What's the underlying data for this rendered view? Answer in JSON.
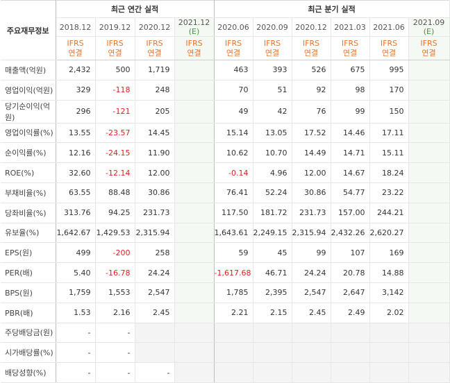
{
  "header": {
    "row_label": "주요재무정보",
    "annual_title": "최근 연간 실적",
    "quarter_title": "최근 분기 실적",
    "ifrs_top": "IFRS",
    "ifrs_bottom": "연결",
    "est_suffix": "(E)"
  },
  "annual_periods": [
    "2018.12",
    "2019.12",
    "2020.12",
    "2021.12"
  ],
  "quarter_periods": [
    "2020.06",
    "2020.09",
    "2020.12",
    "2021.03",
    "2021.06",
    "2021.09"
  ],
  "rows": [
    {
      "label": "매출액(억원)",
      "annual": [
        "2,432",
        "500",
        "1,719",
        ""
      ],
      "quarter": [
        "463",
        "393",
        "526",
        "675",
        "995",
        ""
      ]
    },
    {
      "label": "영업이익(억원)",
      "annual": [
        "329",
        "-118",
        "248",
        ""
      ],
      "quarter": [
        "70",
        "51",
        "92",
        "98",
        "170",
        ""
      ]
    },
    {
      "label": "당기순이익(억원)",
      "annual": [
        "296",
        "-121",
        "205",
        ""
      ],
      "quarter": [
        "49",
        "42",
        "76",
        "99",
        "150",
        ""
      ]
    },
    {
      "label": "영업이익률(%)",
      "annual": [
        "13.55",
        "-23.57",
        "14.45",
        ""
      ],
      "quarter": [
        "15.14",
        "13.05",
        "17.52",
        "14.46",
        "17.11",
        ""
      ]
    },
    {
      "label": "순이익률(%)",
      "annual": [
        "12.16",
        "-24.15",
        "11.90",
        ""
      ],
      "quarter": [
        "10.62",
        "10.70",
        "14.49",
        "14.71",
        "15.11",
        ""
      ]
    },
    {
      "label": "ROE(%)",
      "annual": [
        "32.60",
        "-12.14",
        "12.00",
        ""
      ],
      "quarter": [
        "-0.14",
        "4.96",
        "12.00",
        "14.67",
        "18.24",
        ""
      ]
    },
    {
      "label": "부채비율(%)",
      "annual": [
        "63.55",
        "88.48",
        "30.86",
        ""
      ],
      "quarter": [
        "76.41",
        "52.24",
        "30.86",
        "54.77",
        "23.22",
        ""
      ]
    },
    {
      "label": "당좌비율(%)",
      "annual": [
        "313.76",
        "94.25",
        "231.73",
        ""
      ],
      "quarter": [
        "117.50",
        "181.72",
        "231.73",
        "157.00",
        "244.21",
        ""
      ]
    },
    {
      "label": "유보율(%)",
      "annual": [
        "1,642.67",
        "1,429.53",
        "2,315.94",
        ""
      ],
      "quarter": [
        "1,643.61",
        "2,249.15",
        "2,315.94",
        "2,432.26",
        "2,620.27",
        ""
      ]
    },
    {
      "label": "EPS(원)",
      "annual": [
        "499",
        "-200",
        "258",
        ""
      ],
      "quarter": [
        "59",
        "45",
        "99",
        "107",
        "169",
        ""
      ]
    },
    {
      "label": "PER(배)",
      "annual": [
        "5.40",
        "-16.78",
        "24.24",
        ""
      ],
      "quarter": [
        "-1,617.68",
        "46.71",
        "24.24",
        "20.78",
        "14.88",
        ""
      ]
    },
    {
      "label": "BPS(원)",
      "annual": [
        "1,759",
        "1,553",
        "2,547",
        ""
      ],
      "quarter": [
        "1,785",
        "2,395",
        "2,547",
        "2,647",
        "3,142",
        ""
      ]
    },
    {
      "label": "PBR(배)",
      "annual": [
        "1.53",
        "2.16",
        "2.45",
        ""
      ],
      "quarter": [
        "2.21",
        "2.15",
        "2.45",
        "2.49",
        "2.02",
        ""
      ]
    },
    {
      "label": "주당배당금(원)",
      "annual": [
        "-",
        "-",
        "",
        ""
      ],
      "quarter": [
        "",
        "",
        "",
        "",
        "",
        ""
      ]
    },
    {
      "label": "시가배당률(%)",
      "annual": [
        "-",
        "-",
        "",
        ""
      ],
      "quarter": [
        "",
        "",
        "",
        "",
        "",
        ""
      ]
    },
    {
      "label": "배당성향(%)",
      "annual": [
        "-",
        "-",
        "-",
        ""
      ],
      "quarter": [
        "",
        "",
        "",
        "",
        "",
        ""
      ]
    }
  ],
  "colors": {
    "negative": "#e02020",
    "ifrs": "#e8742b",
    "estimate": "#3c9a3c"
  }
}
